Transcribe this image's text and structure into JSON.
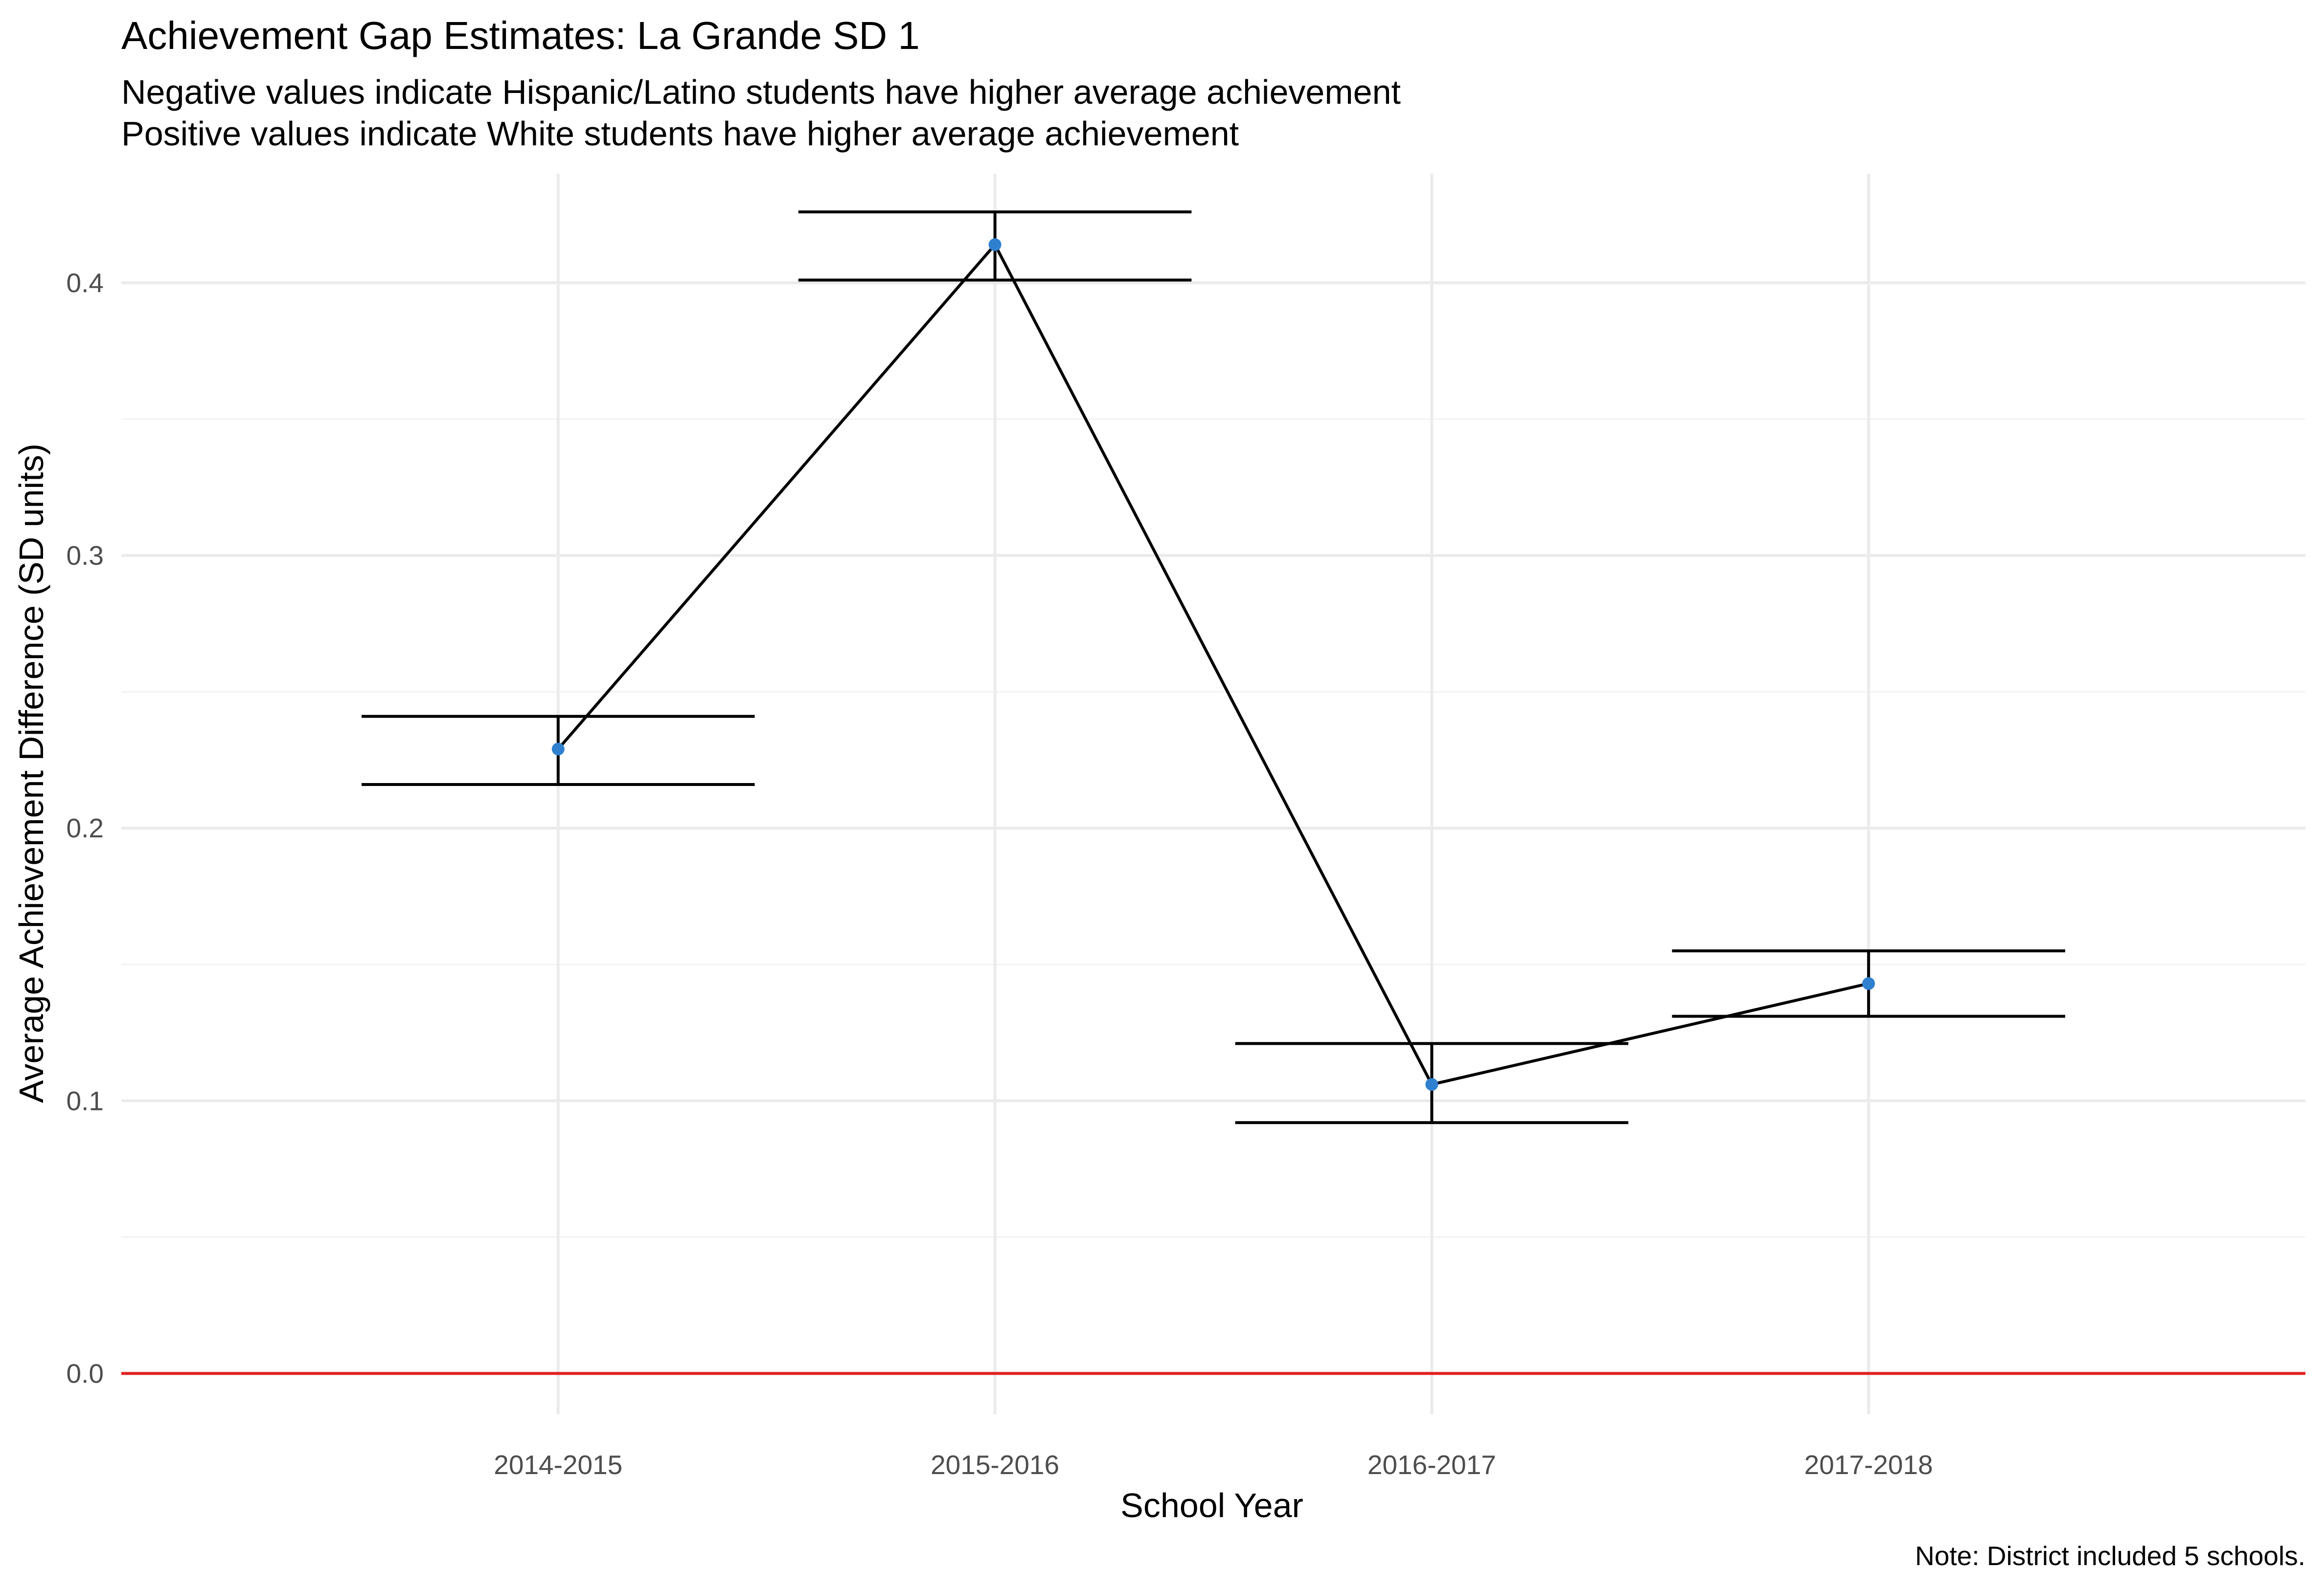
{
  "chart_data": {
    "type": "line",
    "title": "Achievement Gap Estimates: La Grande SD 1",
    "subtitle_lines": [
      "Negative values indicate Hispanic/Latino students have higher average achievement",
      "Positive values indicate White students have higher average achievement"
    ],
    "xlabel": "School Year",
    "ylabel": "Average Achievement Difference (SD units)",
    "caption": "Note: District included 5 schools.",
    "categories": [
      "2014-2015",
      "2015-2016",
      "2016-2017",
      "2017-2018"
    ],
    "values": [
      0.229,
      0.414,
      0.106,
      0.143
    ],
    "error_bars": {
      "lower": [
        0.216,
        0.401,
        0.092,
        0.131
      ],
      "upper": [
        0.241,
        0.426,
        0.121,
        0.155
      ]
    },
    "ylim": [
      -0.015,
      0.44
    ],
    "y_ticks": [
      0.0,
      0.1,
      0.2,
      0.3,
      0.4
    ],
    "y_tick_labels": [
      "0.0",
      "0.1",
      "0.2",
      "0.3",
      "0.4"
    ],
    "reference_line": 0.0,
    "grid": true,
    "legend": "none",
    "colors": {
      "point": "#2f80cf",
      "line": "#000000",
      "error_bar": "#000000",
      "reference_line": "#e0211f",
      "grid_major": "#ebebeb",
      "grid_minor": "#f2f2f2"
    }
  }
}
